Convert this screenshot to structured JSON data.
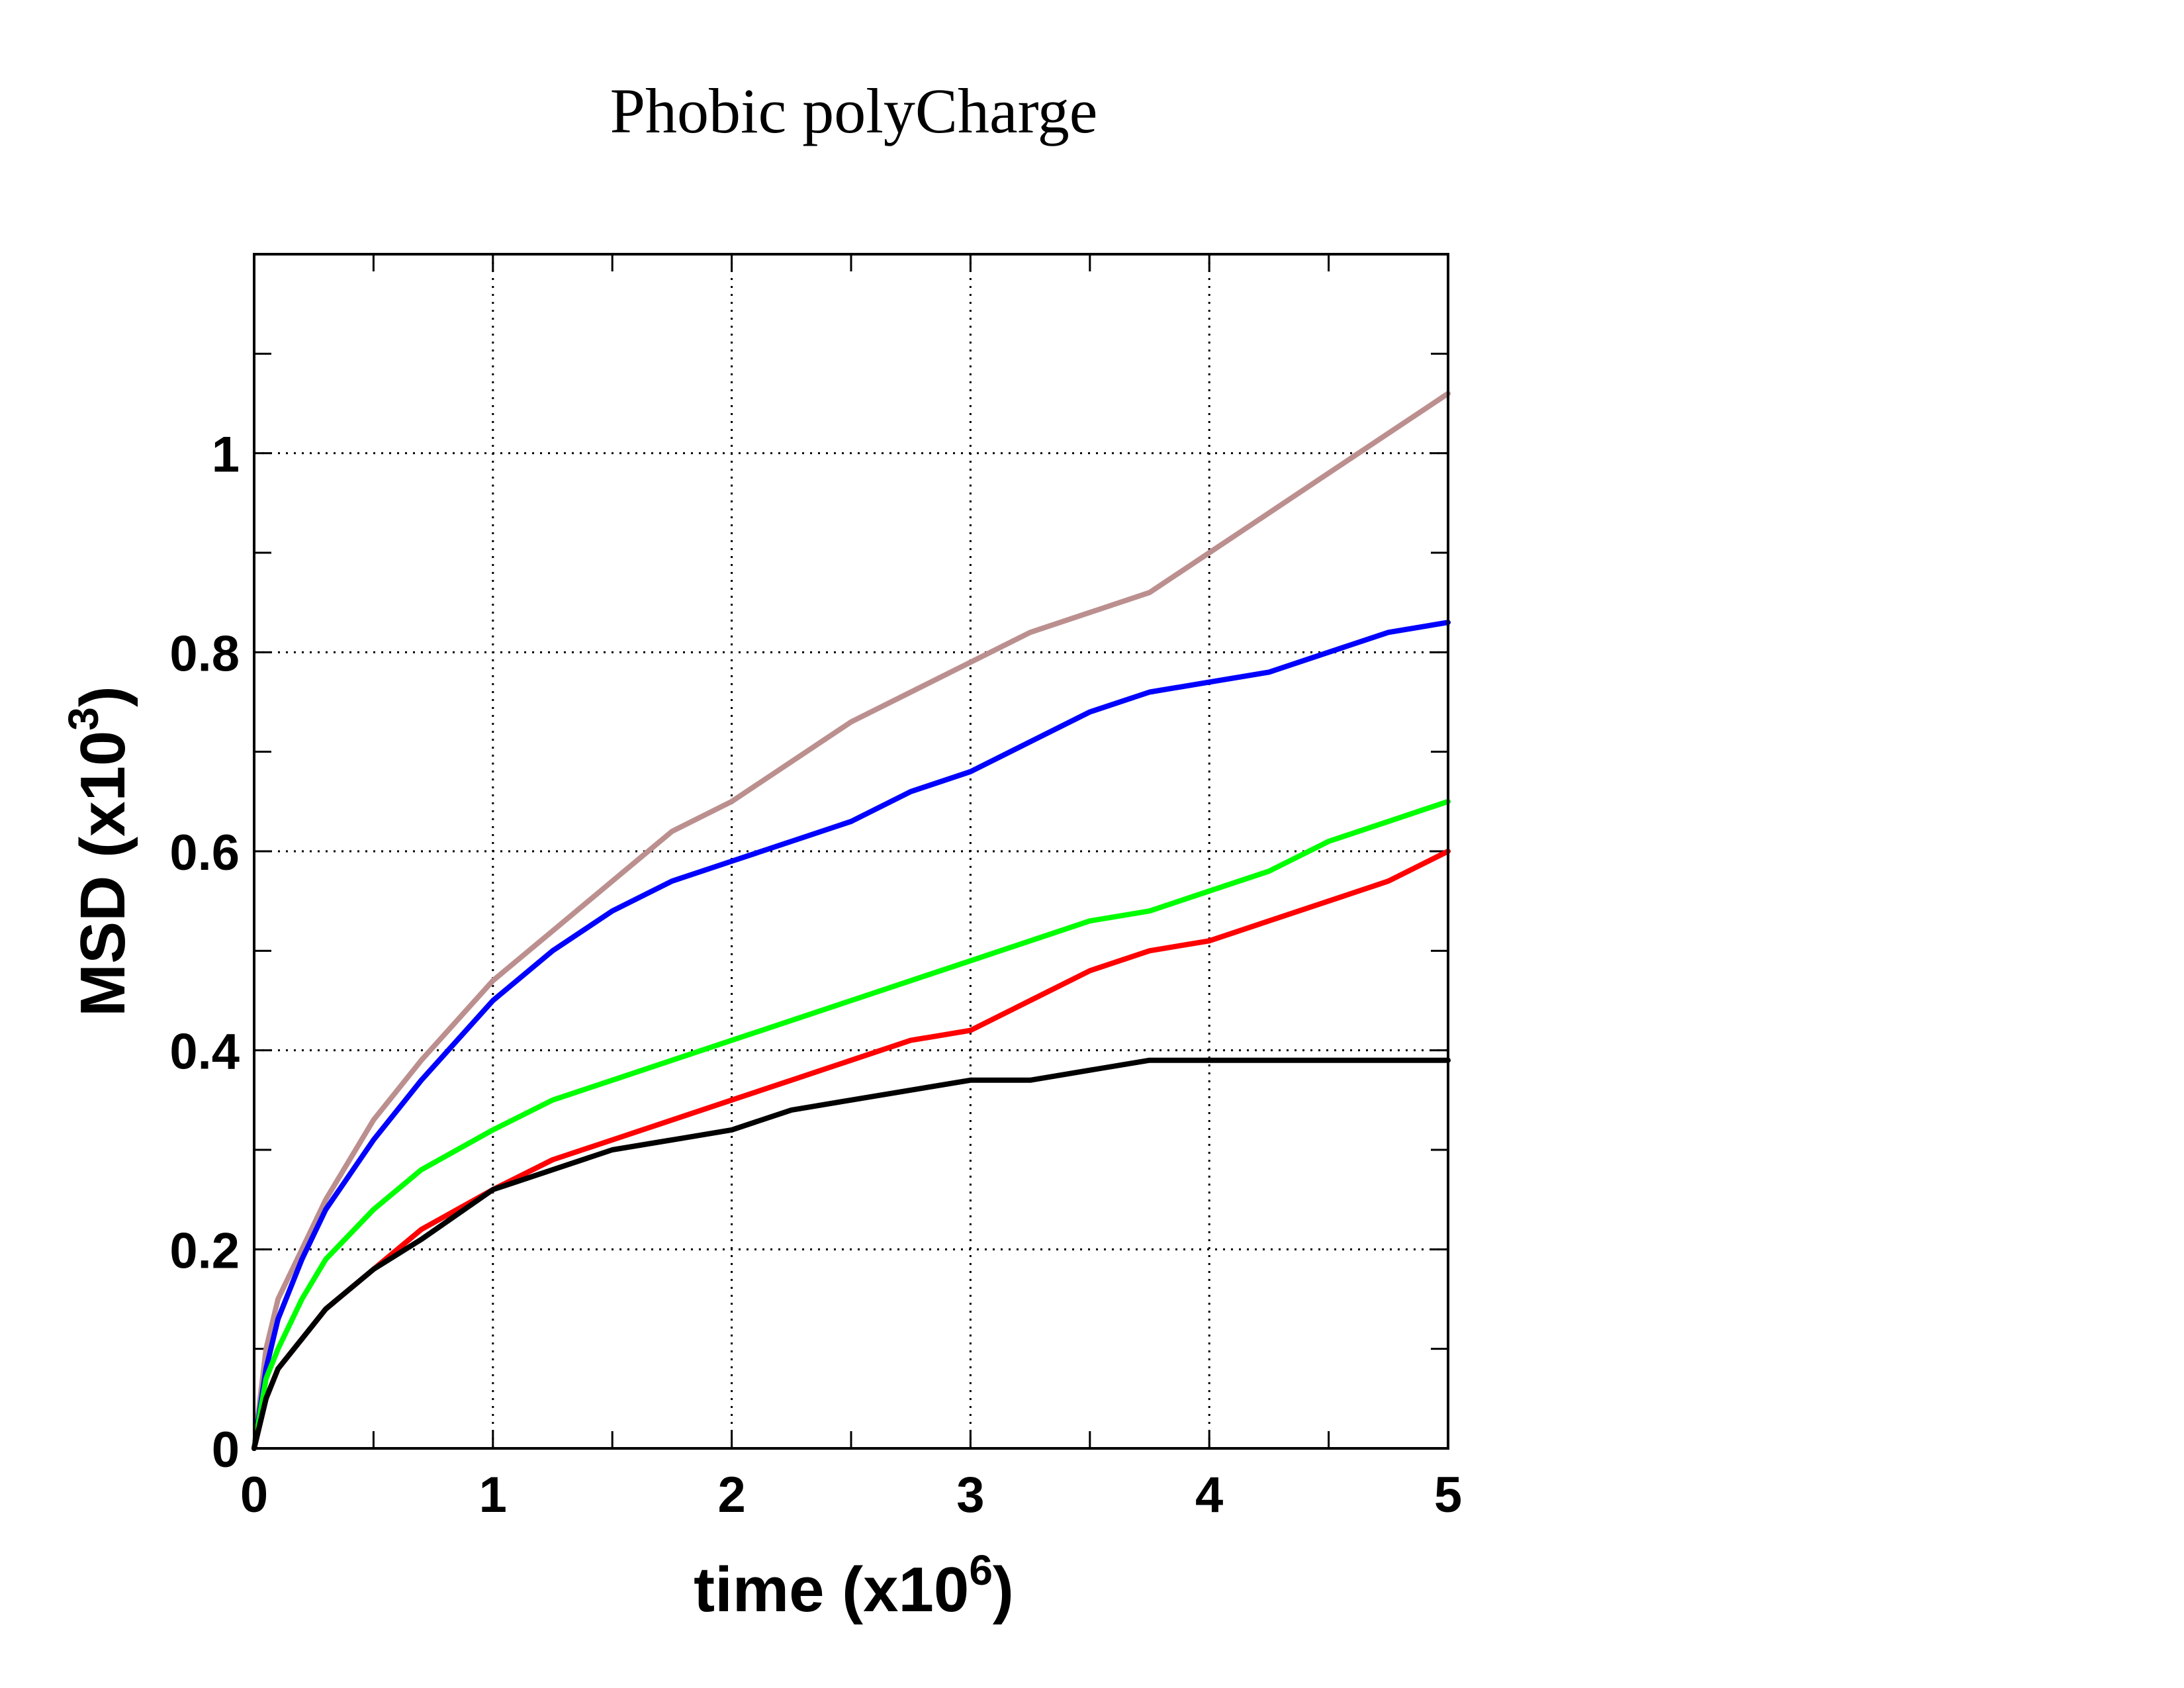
{
  "chart_data": {
    "type": "line",
    "title": "Phobic polyCharge",
    "xlabel": {
      "text": "time (x10",
      "exponent": "6",
      "close": ")"
    },
    "ylabel": {
      "text": "MSD (x10",
      "exponent": "3",
      "close": ")"
    },
    "xlim": [
      0,
      5
    ],
    "ylim": [
      0,
      1.2
    ],
    "xticks": [
      0,
      1,
      2,
      3,
      4,
      5
    ],
    "xtick_labels": [
      "0",
      "1",
      "2",
      "3",
      "4",
      "5"
    ],
    "xminor": [
      0.5,
      1.5,
      2.5,
      3.5,
      4.5
    ],
    "yticks": [
      0,
      0.2,
      0.4,
      0.6,
      0.8,
      1.0
    ],
    "ytick_labels": [
      "0",
      "0.2",
      "0.4",
      "0.6",
      "0.8",
      "1"
    ],
    "yminor": [
      0.1,
      0.3,
      0.5,
      0.7,
      0.9,
      1.1
    ],
    "grid": true,
    "series": [
      {
        "color": "#bc8f8f",
        "x": [
          0,
          0.05,
          0.1,
          0.2,
          0.3,
          0.5,
          0.7,
          1.0,
          1.25,
          1.5,
          1.75,
          2.0,
          2.25,
          2.5,
          2.75,
          3.0,
          3.25,
          3.5,
          3.75,
          4.0,
          4.25,
          4.5,
          4.75,
          5.0
        ],
        "y": [
          0,
          0.1,
          0.15,
          0.2,
          0.25,
          0.33,
          0.39,
          0.47,
          0.52,
          0.57,
          0.62,
          0.65,
          0.69,
          0.73,
          0.76,
          0.79,
          0.82,
          0.84,
          0.86,
          0.9,
          0.94,
          0.98,
          1.02,
          1.06
        ]
      },
      {
        "color": "#0000ff",
        "x": [
          0,
          0.05,
          0.1,
          0.2,
          0.3,
          0.5,
          0.7,
          1.0,
          1.25,
          1.5,
          1.75,
          2.0,
          2.25,
          2.5,
          2.75,
          3.0,
          3.25,
          3.5,
          3.75,
          4.0,
          4.25,
          4.5,
          4.75,
          5.0
        ],
        "y": [
          0,
          0.08,
          0.13,
          0.19,
          0.24,
          0.31,
          0.37,
          0.45,
          0.5,
          0.54,
          0.57,
          0.59,
          0.61,
          0.63,
          0.66,
          0.68,
          0.71,
          0.74,
          0.76,
          0.77,
          0.78,
          0.8,
          0.82,
          0.83
        ]
      },
      {
        "color": "#00ff00",
        "x": [
          0,
          0.05,
          0.1,
          0.2,
          0.3,
          0.5,
          0.7,
          1.0,
          1.25,
          1.5,
          1.75,
          2.0,
          2.25,
          2.5,
          2.75,
          3.0,
          3.25,
          3.5,
          3.75,
          4.0,
          4.25,
          4.5,
          4.75,
          5.0
        ],
        "y": [
          0,
          0.07,
          0.1,
          0.15,
          0.19,
          0.24,
          0.28,
          0.32,
          0.35,
          0.37,
          0.39,
          0.41,
          0.43,
          0.45,
          0.47,
          0.49,
          0.51,
          0.53,
          0.54,
          0.56,
          0.58,
          0.61,
          0.63,
          0.65
        ]
      },
      {
        "color": "#ff0000",
        "x": [
          0,
          0.05,
          0.1,
          0.2,
          0.3,
          0.5,
          0.7,
          1.0,
          1.25,
          1.5,
          1.75,
          2.0,
          2.25,
          2.5,
          2.75,
          3.0,
          3.25,
          3.5,
          3.75,
          4.0,
          4.25,
          4.5,
          4.75,
          5.0
        ],
        "y": [
          0,
          0.05,
          0.08,
          0.11,
          0.14,
          0.18,
          0.22,
          0.26,
          0.29,
          0.31,
          0.33,
          0.35,
          0.37,
          0.39,
          0.41,
          0.42,
          0.45,
          0.48,
          0.5,
          0.51,
          0.53,
          0.55,
          0.57,
          0.6
        ]
      },
      {
        "color": "#000000",
        "x": [
          0,
          0.05,
          0.1,
          0.2,
          0.3,
          0.5,
          0.7,
          1.0,
          1.25,
          1.5,
          1.75,
          2.0,
          2.25,
          2.5,
          2.75,
          3.0,
          3.25,
          3.5,
          3.75,
          4.0,
          4.25,
          4.5,
          4.75,
          5.0
        ],
        "y": [
          0,
          0.05,
          0.08,
          0.11,
          0.14,
          0.18,
          0.21,
          0.26,
          0.28,
          0.3,
          0.31,
          0.32,
          0.34,
          0.35,
          0.36,
          0.37,
          0.37,
          0.38,
          0.39,
          0.39,
          0.39,
          0.39,
          0.39,
          0.39
        ]
      }
    ]
  }
}
